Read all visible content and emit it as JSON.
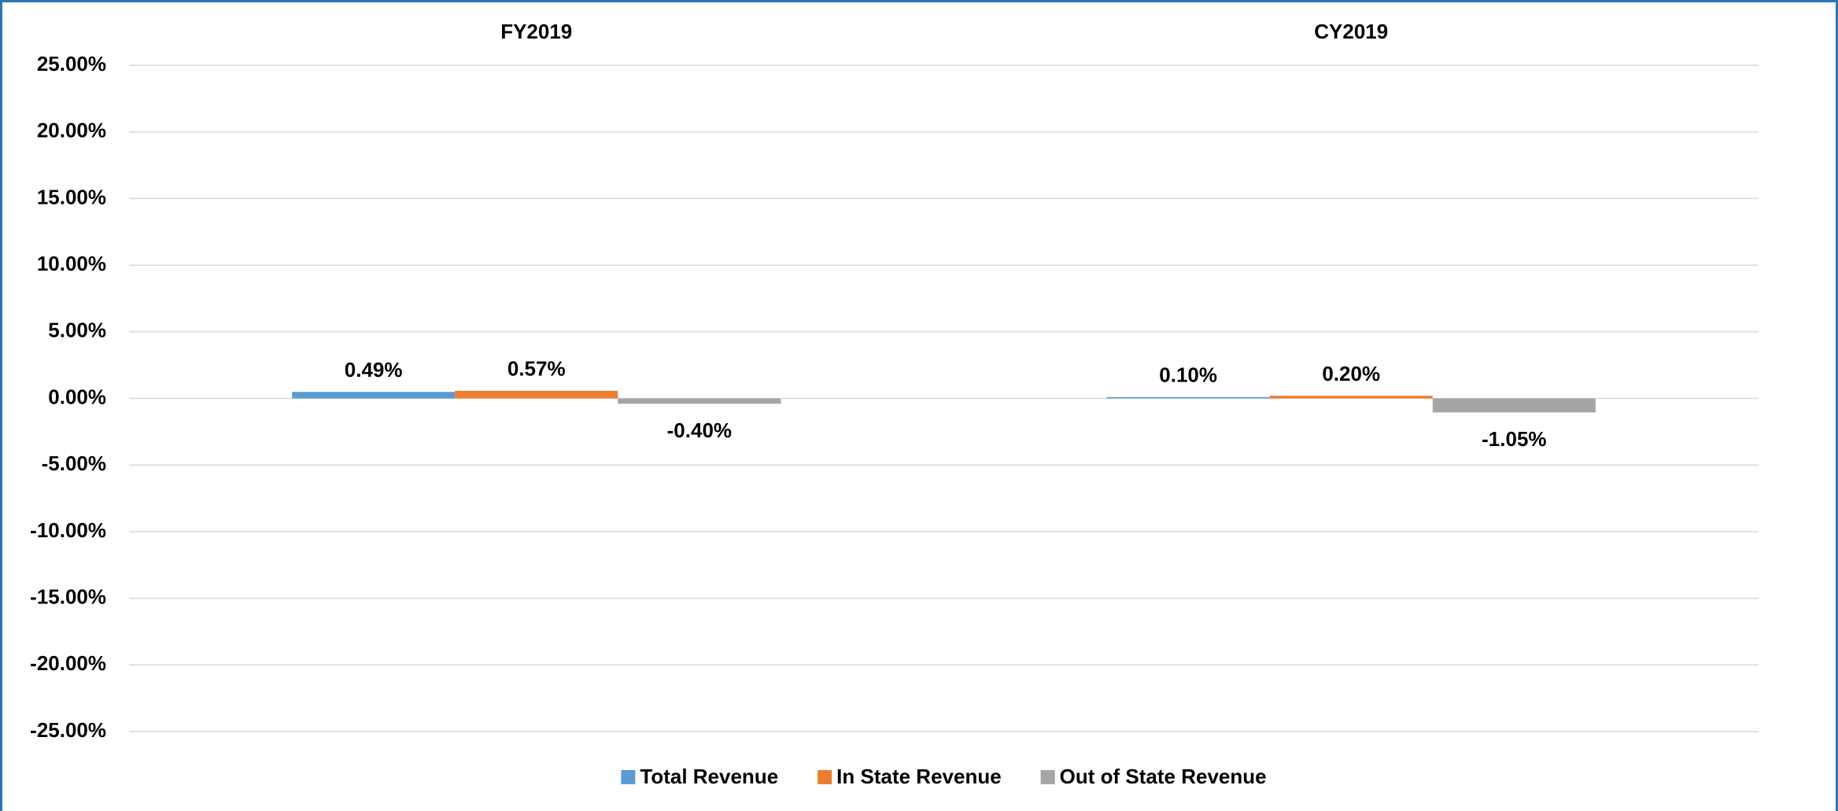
{
  "chart_data": {
    "type": "bar",
    "categories": [
      "FY2019",
      "CY2019"
    ],
    "series": [
      {
        "name": "Total Revenue",
        "color": "#5b9bd5",
        "values": [
          0.49,
          0.1
        ],
        "value_labels": [
          "0.49%",
          "0.10%"
        ]
      },
      {
        "name": "In State Revenue",
        "color": "#ed7d31",
        "values": [
          0.57,
          0.2
        ],
        "value_labels": [
          "0.57%",
          "0.20%"
        ]
      },
      {
        "name": "Out of State Revenue",
        "color": "#a5a5a5",
        "values": [
          -0.4,
          -1.05
        ],
        "value_labels": [
          "-0.40%",
          "-1.05%"
        ]
      }
    ],
    "ylim": [
      -25,
      25
    ],
    "yticks": [
      {
        "value": -25,
        "label": "-25.00%"
      },
      {
        "value": -20,
        "label": "-20.00%"
      },
      {
        "value": -15,
        "label": "-15.00%"
      },
      {
        "value": -10,
        "label": "-10.00%"
      },
      {
        "value": -5,
        "label": "-5.00%"
      },
      {
        "value": 0,
        "label": "0.00%"
      },
      {
        "value": 5,
        "label": "5.00%"
      },
      {
        "value": 10,
        "label": "10.00%"
      },
      {
        "value": 15,
        "label": "15.00%"
      },
      {
        "value": 20,
        "label": "20.00%"
      },
      {
        "value": 25,
        "label": "25.00%"
      }
    ],
    "grid": true,
    "legend": "bottom"
  }
}
